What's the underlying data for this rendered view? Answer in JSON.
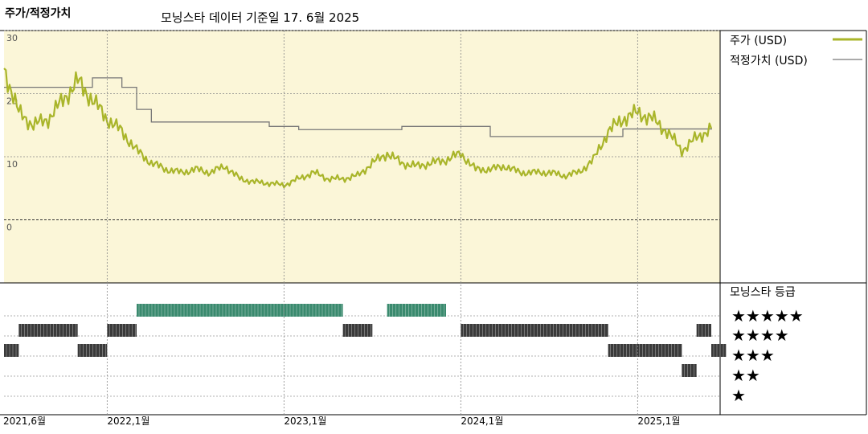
{
  "header": {
    "title": "주가/적정가치",
    "subtitle": "모닝스타 데이터 기준일 17. 6월 2025"
  },
  "legend": {
    "price_label": "주가 (USD)",
    "fair_label": "적정가치 (USD)",
    "rating_title": "모닝스타 등급",
    "stars": [
      "★★★★★",
      "★★★★",
      "★★★",
      "★★",
      "★"
    ]
  },
  "colors": {
    "price_area_bg": "#fbf6d8",
    "price_line": "#a9b52a",
    "fair_line": "#777777",
    "rating_five": "#3a8a6e",
    "rating_other": "#3a3a3a"
  },
  "chart_data": {
    "type": "line",
    "title": "주가/적정가치",
    "ylim": [
      0,
      30
    ],
    "y_ticks": [
      "30",
      "20",
      "10",
      "0"
    ],
    "x_ticks": [
      "2021,6월",
      "2022,1월",
      "2023,1월",
      "2024,1월",
      "2025,1월"
    ],
    "x_tick_dates": [
      "2021-06",
      "2022-01",
      "2023-01",
      "2024-01",
      "2025-01"
    ],
    "series": [
      {
        "name": "주가 (USD)",
        "x": [
          "2021-06",
          "2021-07",
          "2021-08",
          "2021-09",
          "2021-10",
          "2021-11",
          "2021-12",
          "2022-01",
          "2022-02",
          "2022-03",
          "2022-04",
          "2022-05",
          "2022-06",
          "2022-07",
          "2022-08",
          "2022-09",
          "2022-10",
          "2022-11",
          "2022-12",
          "2023-01",
          "2023-02",
          "2023-03",
          "2023-04",
          "2023-05",
          "2023-06",
          "2023-07",
          "2023-08",
          "2023-09",
          "2023-10",
          "2023-11",
          "2023-12",
          "2024-01",
          "2024-02",
          "2024-03",
          "2024-04",
          "2024-05",
          "2024-06",
          "2024-07",
          "2024-08",
          "2024-09",
          "2024-10",
          "2024-11",
          "2024-12",
          "2025-01",
          "2025-02",
          "2025-03",
          "2025-04",
          "2025-05",
          "2025-06"
        ],
        "values": [
          24,
          17,
          15,
          16,
          19,
          22,
          19,
          16,
          14,
          11,
          9,
          8,
          7.5,
          8,
          7.5,
          8.5,
          6.5,
          6,
          5.8,
          5.5,
          6.5,
          7.5,
          6.5,
          6.5,
          7,
          9,
          10.5,
          9,
          8.5,
          9,
          9.5,
          10.5,
          8,
          8,
          8.5,
          7.5,
          7.5,
          7.5,
          7,
          7.5,
          9.5,
          14,
          16,
          17,
          16,
          14,
          11,
          13,
          14.5
        ]
      },
      {
        "name": "적정가치 (USD)",
        "x": [
          "2021-06",
          "2021-09",
          "2021-12",
          "2022-01",
          "2022-02",
          "2022-03",
          "2022-04",
          "2022-12",
          "2023-02",
          "2023-09",
          "2024-01",
          "2024-03",
          "2024-09",
          "2024-12",
          "2025-06"
        ],
        "values": [
          21,
          21,
          22.5,
          22.5,
          21,
          17.5,
          15.5,
          14.8,
          14.3,
          14.8,
          14.8,
          13.2,
          13.2,
          14.4,
          14.4
        ]
      }
    ],
    "ratings": {
      "levels": [
        5,
        4,
        3,
        2,
        1
      ],
      "periods": [
        {
          "start": "2021-06",
          "end": "2021-07",
          "stars": 3
        },
        {
          "start": "2021-07",
          "end": "2021-11",
          "stars": 4
        },
        {
          "start": "2021-11",
          "end": "2022-01",
          "stars": 3
        },
        {
          "start": "2022-01",
          "end": "2022-03",
          "stars": 4
        },
        {
          "start": "2022-03",
          "end": "2023-05",
          "stars": 5
        },
        {
          "start": "2023-05",
          "end": "2023-07",
          "stars": 4
        },
        {
          "start": "2023-08",
          "end": "2023-12",
          "stars": 5
        },
        {
          "start": "2024-01",
          "end": "2024-11",
          "stars": 4
        },
        {
          "start": "2024-11",
          "end": "2025-04",
          "stars": 3
        },
        {
          "start": "2025-04",
          "end": "2025-05",
          "stars": 2
        },
        {
          "start": "2025-05",
          "end": "2025-06",
          "stars": 4
        },
        {
          "start": "2025-06",
          "end": "2025-07",
          "stars": 3
        }
      ]
    }
  }
}
